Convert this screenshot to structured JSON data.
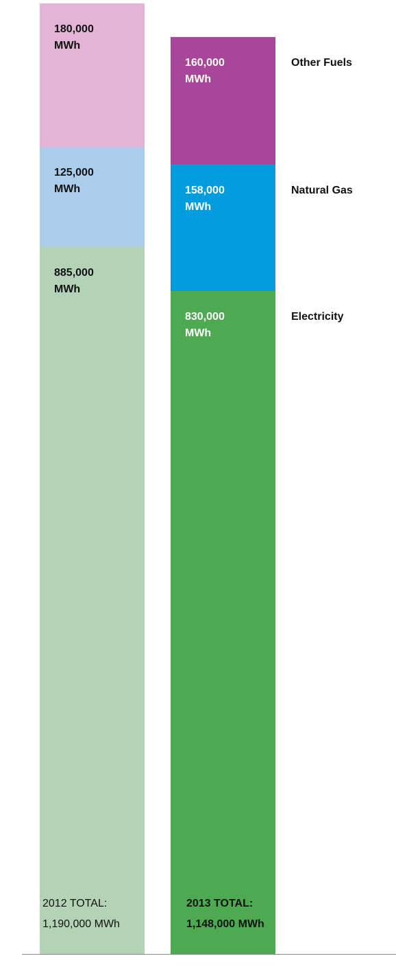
{
  "chart_data": {
    "type": "bar",
    "stacked": true,
    "unit": "MWh",
    "categories": [
      "2012",
      "2013"
    ],
    "series": [
      {
        "name": "Electricity",
        "values": [
          885000,
          830000
        ],
        "colors": [
          "#b4d3b6",
          "#4eaa50"
        ],
        "labels": [
          "885,000",
          "830,000"
        ]
      },
      {
        "name": "Natural Gas",
        "values": [
          125000,
          158000
        ],
        "colors": [
          "#abcdec",
          "#009cde"
        ],
        "labels": [
          "125,000",
          "158,000"
        ]
      },
      {
        "name": "Other Fuels",
        "values": [
          180000,
          160000
        ],
        "colors": [
          "#e3b4d5",
          "#a8469a"
        ],
        "labels": [
          "180,000",
          "160,000"
        ]
      }
    ],
    "label_unit": "MWh",
    "label_colors": [
      "#111111",
      "#ffffff"
    ],
    "totals": [
      {
        "line1": "2012 TOTAL:",
        "line2": "1,190,000 MWh"
      },
      {
        "line1": "2013 TOTAL:",
        "line2": "1,148,000 MWh"
      }
    ],
    "axis_color": "#888888",
    "ylim": [
      0,
      1190000
    ]
  }
}
